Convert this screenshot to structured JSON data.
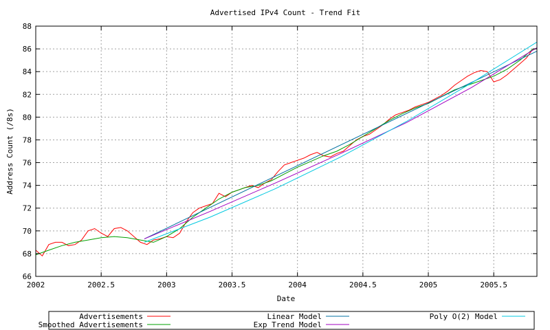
{
  "chart_data": {
    "type": "line",
    "title": "Advertised IPv4 Count - Trend Fit",
    "xlabel": "Date",
    "ylabel": "Address Count (/8s)",
    "xlim": [
      2002,
      2005.83
    ],
    "ylim": [
      66,
      88
    ],
    "x_ticks": [
      2002,
      2002.5,
      2003,
      2003.5,
      2004,
      2004.5,
      2005,
      2005.5
    ],
    "x_tick_labels": [
      "2002",
      "2002.5",
      "2003",
      "2003.5",
      "2004",
      "2004.5",
      "2005",
      "2005.5"
    ],
    "y_ticks": [
      66,
      68,
      70,
      72,
      74,
      76,
      78,
      80,
      82,
      84,
      86,
      88
    ],
    "y_tick_labels": [
      "66",
      "68",
      "70",
      "72",
      "74",
      "76",
      "78",
      "80",
      "82",
      "84",
      "86",
      "88"
    ],
    "grid": true,
    "legend_position": "bottom",
    "series": [
      {
        "name": "Advertisements",
        "color": "#ff0000",
        "x": [
          2002.0,
          2002.05,
          2002.1,
          2002.15,
          2002.2,
          2002.25,
          2002.3,
          2002.35,
          2002.4,
          2002.45,
          2002.5,
          2002.55,
          2002.6,
          2002.65,
          2002.7,
          2002.75,
          2002.8,
          2002.85,
          2002.9,
          2002.95,
          2003.0,
          2003.05,
          2003.1,
          2003.15,
          2003.2,
          2003.25,
          2003.3,
          2003.35,
          2003.4,
          2003.45,
          2003.5,
          2003.55,
          2003.6,
          2003.65,
          2003.7,
          2003.75,
          2003.8,
          2003.85,
          2003.9,
          2003.95,
          2004.0,
          2004.05,
          2004.1,
          2004.15,
          2004.2,
          2004.25,
          2004.3,
          2004.35,
          2004.4,
          2004.45,
          2004.5,
          2004.55,
          2004.6,
          2004.65,
          2004.7,
          2004.75,
          2004.8,
          2004.85,
          2004.9,
          2004.95,
          2005.0,
          2005.05,
          2005.1,
          2005.15,
          2005.2,
          2005.25,
          2005.3,
          2005.35,
          2005.4,
          2005.45,
          2005.5,
          2005.55,
          2005.6,
          2005.65,
          2005.7,
          2005.75,
          2005.8
        ],
        "values": [
          68.3,
          67.8,
          68.8,
          69.0,
          69.0,
          68.7,
          68.8,
          69.2,
          70.0,
          70.2,
          69.8,
          69.5,
          70.2,
          70.3,
          70.0,
          69.5,
          69.0,
          68.8,
          69.2,
          69.3,
          69.5,
          69.4,
          69.8,
          70.8,
          71.6,
          72.0,
          72.2,
          72.4,
          73.3,
          73.0,
          73.4,
          73.6,
          73.8,
          74.0,
          73.8,
          74.2,
          74.5,
          75.2,
          75.8,
          76.0,
          76.2,
          76.4,
          76.7,
          76.9,
          76.6,
          76.5,
          76.8,
          77.0,
          77.5,
          78.0,
          78.3,
          78.5,
          78.9,
          79.3,
          79.8,
          80.2,
          80.4,
          80.6,
          80.9,
          81.1,
          81.3,
          81.6,
          81.9,
          82.3,
          82.8,
          83.2,
          83.6,
          83.9,
          84.1,
          84.0,
          83.1,
          83.3,
          83.7,
          84.2,
          84.7,
          85.2,
          86.0
        ]
      },
      {
        "name": "Smoothed Advertisements",
        "color": "#00a000",
        "x": [
          2002.0,
          2002.1,
          2002.2,
          2002.3,
          2002.4,
          2002.5,
          2002.6,
          2002.7,
          2002.8,
          2002.9,
          2003.0,
          2003.1,
          2003.2,
          2003.3,
          2003.4,
          2003.5,
          2003.6,
          2003.7,
          2003.8,
          2003.9,
          2004.0,
          2004.1,
          2004.2,
          2004.3,
          2004.4,
          2004.5,
          2004.6,
          2004.7,
          2004.8,
          2004.9,
          2005.0,
          2005.1,
          2005.2,
          2005.3,
          2005.4,
          2005.5,
          2005.6,
          2005.7,
          2005.8
        ],
        "values": [
          67.9,
          68.3,
          68.7,
          69.0,
          69.2,
          69.4,
          69.5,
          69.4,
          69.2,
          69.0,
          69.5,
          70.2,
          71.2,
          72.0,
          72.8,
          73.4,
          73.8,
          74.0,
          74.4,
          75.0,
          75.6,
          76.1,
          76.6,
          77.0,
          77.6,
          78.3,
          79.0,
          79.7,
          80.3,
          80.8,
          81.2,
          81.8,
          82.4,
          82.8,
          83.2,
          83.6,
          84.2,
          85.0,
          86.0
        ]
      },
      {
        "name": "Linear Model",
        "color": "#0070a0",
        "x": [
          2002.83,
          2005.83
        ],
        "values": [
          69.3,
          85.8
        ]
      },
      {
        "name": "Exp Trend Model",
        "color": "#a000c0",
        "x": [
          2002.83,
          2003.33,
          2003.83,
          2004.33,
          2004.83,
          2005.33,
          2005.83
        ],
        "values": [
          69.3,
          71.7,
          74.2,
          76.8,
          79.5,
          82.6,
          86.1
        ]
      },
      {
        "name": "Poly O(2) Model",
        "color": "#00c8e0",
        "x": [
          2002.83,
          2003.33,
          2003.83,
          2004.33,
          2004.83,
          2005.33,
          2005.83
        ],
        "values": [
          69.0,
          71.2,
          73.7,
          76.5,
          79.6,
          83.0,
          86.6
        ]
      }
    ]
  }
}
